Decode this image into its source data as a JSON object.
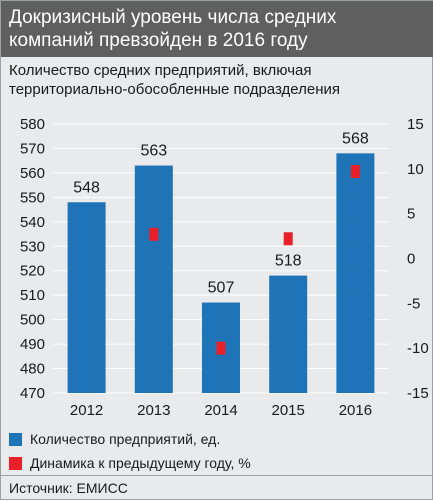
{
  "header": {
    "title": "Докризисный уровень числа средних компаний превзойден в 2016 году"
  },
  "subtitle": "Количество средних предприятий, включая территориально-обособленные подразделения",
  "colors": {
    "bar": "#1f73b7",
    "marker": "#e8202a",
    "header_bg": "#5f5f5f",
    "panel_bg": "#e8eaeb",
    "grid": "#ffffff"
  },
  "chart_data": {
    "type": "bar",
    "categories": [
      "2012",
      "2013",
      "2014",
      "2015",
      "2016"
    ],
    "series": [
      {
        "name": "Количество предприятий, ед.",
        "axis": "left",
        "kind": "bar",
        "values": [
          548,
          563,
          507,
          518,
          568
        ]
      },
      {
        "name": "Динамика к предыдущему году, %",
        "axis": "right",
        "kind": "marker",
        "values": [
          null,
          2.7,
          -10.0,
          2.2,
          9.7
        ]
      }
    ],
    "data_labels": [
      "548",
      "563",
      "507",
      "518",
      "568"
    ],
    "ylim": [
      470,
      580
    ],
    "yticks": [
      "470",
      "480",
      "490",
      "500",
      "510",
      "520",
      "530",
      "540",
      "550",
      "560",
      "570",
      "580"
    ],
    "y2lim": [
      -15,
      15
    ],
    "y2ticks": [
      "-15",
      "-10",
      "-5",
      "0",
      "5",
      "10",
      "15"
    ],
    "grid": true
  },
  "legend": {
    "items": [
      {
        "label": "Количество предприятий, ед.",
        "color": "#1f73b7"
      },
      {
        "label": "Динамика к предыдущему году, %",
        "color": "#e8202a"
      }
    ]
  },
  "source": "Источник: ЕМИСС"
}
